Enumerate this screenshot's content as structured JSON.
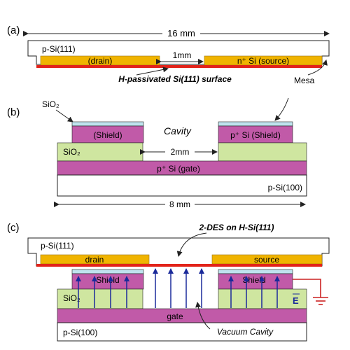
{
  "colors": {
    "outline": "#222222",
    "gold": "#f0b400",
    "red": "#e2231a",
    "magenta": "#c15aa8",
    "green": "#cfe6a0",
    "lightblue": "#bfe3ee",
    "arrow_blue": "#1a2a9a",
    "ground_red": "#cc2222"
  },
  "icons": {
    "ground": "ground-symbol-icon"
  },
  "panel_a": {
    "label": "(a)",
    "width_dim": "16 mm",
    "substrate": "p-Si(111)",
    "drain": "(drain)",
    "gap_dim": "1mm",
    "source": "n⁺ Si (source)",
    "surface_caption": "H-passivated Si(111) surface",
    "mesa": "Mesa"
  },
  "panel_b": {
    "label": "(b)",
    "sio2_cap": "SiO₂",
    "cavity": "Cavity",
    "shield_left": "(Shield)",
    "shield_right": "p⁺ Si  (Shield)",
    "sio2_left": "SiO₂",
    "gap_dim": "2mm",
    "gate": "p⁺ Si  (gate)",
    "substrate": "p-Si(100)",
    "width_dim": "8 mm"
  },
  "panel_c": {
    "label": "(c)",
    "top_substrate": "p-Si(111)",
    "twodes": "2-DES on H-Si(111)",
    "drain": "drain",
    "source": "source",
    "shield_left": "Shield",
    "shield_right": "Shield",
    "sio2": "SiO₂",
    "efield": "E",
    "gate": "gate",
    "substrate": "p-Si(100)",
    "vacuum": "Vacuum Cavity"
  }
}
